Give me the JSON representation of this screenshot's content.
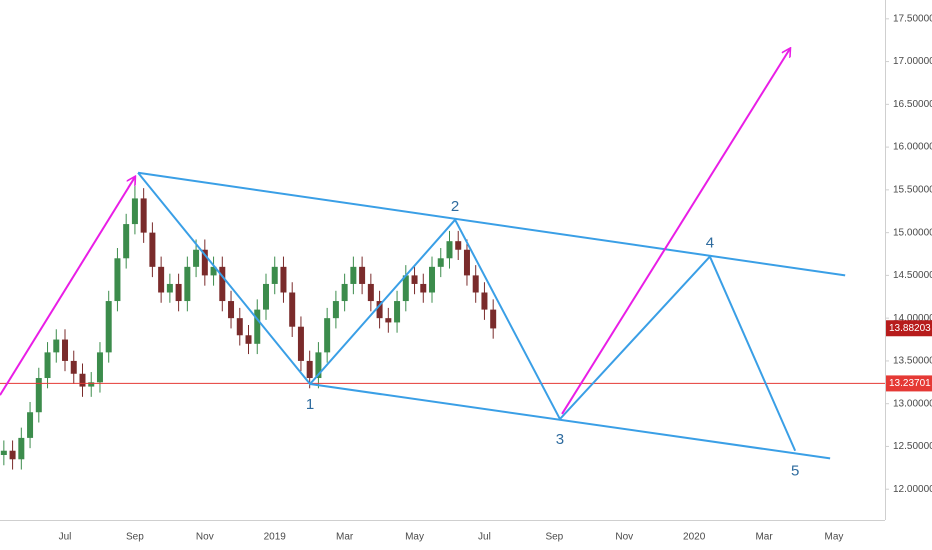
{
  "chart_data": {
    "type": "candlestick",
    "xlim": [
      4.14,
      29.46
    ],
    "ylim": [
      11.64,
      17.72
    ],
    "xticks": [
      {
        "value": 6,
        "label": "Jul"
      },
      {
        "value": 8,
        "label": "Sep"
      },
      {
        "value": 10,
        "label": "Nov"
      },
      {
        "value": 12,
        "label": "2019"
      },
      {
        "value": 14,
        "label": "Mar"
      },
      {
        "value": 16,
        "label": "May"
      },
      {
        "value": 18,
        "label": "Jul"
      },
      {
        "value": 20,
        "label": "Sep"
      },
      {
        "value": 22,
        "label": "Nov"
      },
      {
        "value": 24,
        "label": "2020"
      },
      {
        "value": 26,
        "label": "Mar"
      },
      {
        "value": 28,
        "label": "May"
      }
    ],
    "yticks": [
      {
        "value": 12,
        "label": "12.00000"
      },
      {
        "value": 12.5,
        "label": "12.50000"
      },
      {
        "value": 13,
        "label": "13.00000"
      },
      {
        "value": 13.5,
        "label": "13.50000"
      },
      {
        "value": 14,
        "label": "14.00000"
      },
      {
        "value": 14.5,
        "label": "14.50000"
      },
      {
        "value": 15,
        "label": "15.00000"
      },
      {
        "value": 15.5,
        "label": "15.50000"
      },
      {
        "value": 16,
        "label": "16.00000"
      },
      {
        "value": 16.5,
        "label": "16.50000"
      },
      {
        "value": 17,
        "label": "17.00000"
      },
      {
        "value": 17.5,
        "label": "17.50000"
      }
    ],
    "up_color": "#3c8c4c",
    "down_color": "#7a2b2b",
    "candles": {
      "x": [
        4.25,
        4.5,
        4.75,
        5,
        5.25,
        5.5,
        5.75,
        6,
        6.25,
        6.5,
        6.75,
        7,
        7.25,
        7.5,
        7.75,
        8,
        8.25,
        8.5,
        8.75,
        9,
        9.25,
        9.5,
        9.75,
        10,
        10.25,
        10.5,
        10.75,
        11,
        11.25,
        11.5,
        11.75,
        12,
        12.25,
        12.5,
        12.75,
        13,
        13.25,
        13.5,
        13.75,
        14,
        14.25,
        14.5,
        14.75,
        15,
        15.25,
        15.5,
        15.75,
        16,
        16.25,
        16.5,
        16.75,
        17,
        17.25,
        17.5,
        17.75,
        18,
        18.25
      ],
      "open": [
        12.4,
        12.45,
        12.35,
        12.6,
        12.9,
        13.3,
        13.6,
        13.75,
        13.5,
        13.35,
        13.2,
        13.25,
        13.6,
        14.2,
        14.7,
        15.1,
        15.4,
        15.0,
        14.6,
        14.3,
        14.4,
        14.2,
        14.6,
        14.8,
        14.5,
        14.6,
        14.2,
        14.0,
        13.8,
        13.7,
        14.1,
        14.4,
        14.6,
        14.3,
        13.9,
        13.5,
        13.3,
        13.6,
        14.0,
        14.2,
        14.4,
        14.6,
        14.4,
        14.2,
        14.0,
        13.95,
        14.2,
        14.5,
        14.4,
        14.3,
        14.6,
        14.7,
        14.9,
        14.8,
        14.5,
        14.3,
        14.1
      ],
      "high": [
        12.57,
        12.57,
        12.72,
        13.02,
        13.42,
        13.72,
        13.87,
        13.87,
        13.62,
        13.47,
        13.37,
        13.72,
        14.32,
        14.82,
        15.22,
        15.62,
        15.52,
        15.12,
        14.72,
        14.52,
        14.52,
        14.72,
        14.92,
        14.92,
        14.72,
        14.72,
        14.32,
        14.12,
        13.92,
        14.22,
        14.52,
        14.72,
        14.72,
        14.42,
        14.02,
        13.62,
        13.72,
        14.12,
        14.32,
        14.52,
        14.72,
        14.72,
        14.52,
        14.32,
        14.12,
        14.32,
        14.62,
        14.62,
        14.52,
        14.72,
        14.82,
        15.02,
        15.02,
        14.92,
        14.62,
        14.42,
        14.22
      ],
      "low": [
        12.28,
        12.23,
        12.23,
        12.48,
        12.78,
        13.18,
        13.48,
        13.38,
        13.23,
        13.08,
        13.08,
        13.13,
        13.48,
        14.08,
        14.58,
        14.98,
        14.88,
        14.48,
        14.18,
        14.18,
        14.08,
        14.08,
        14.48,
        14.38,
        14.38,
        14.08,
        13.88,
        13.68,
        13.58,
        13.58,
        13.98,
        14.28,
        14.18,
        13.78,
        13.38,
        13.18,
        13.18,
        13.48,
        13.88,
        14.08,
        14.28,
        14.28,
        14.08,
        13.88,
        13.83,
        13.83,
        14.08,
        14.28,
        14.18,
        14.18,
        14.48,
        14.58,
        14.68,
        14.38,
        14.18,
        13.98,
        13.76
      ],
      "close": [
        12.45,
        12.35,
        12.6,
        12.9,
        13.3,
        13.6,
        13.75,
        13.5,
        13.35,
        13.2,
        13.25,
        13.6,
        14.2,
        14.7,
        15.1,
        15.4,
        15.0,
        14.6,
        14.3,
        14.4,
        14.2,
        14.6,
        14.8,
        14.5,
        14.6,
        14.2,
        14.0,
        13.8,
        13.7,
        14.1,
        14.4,
        14.6,
        14.3,
        13.9,
        13.5,
        13.3,
        13.6,
        14.0,
        14.2,
        14.4,
        14.6,
        14.4,
        14.2,
        14.0,
        13.95,
        14.2,
        14.5,
        14.4,
        14.3,
        14.6,
        14.7,
        14.9,
        14.8,
        14.5,
        14.3,
        14.1,
        13.88
      ]
    },
    "drawings": [
      {
        "color": "#3a9fe6",
        "arrow": false,
        "x": [
          8.09,
          28.32
        ],
        "y": [
          15.7,
          14.5
        ]
      },
      {
        "color": "#3a9fe6",
        "arrow": false,
        "x": [
          13.01,
          27.89
        ],
        "y": [
          13.23,
          12.36
        ]
      },
      {
        "color": "#3a9fe6",
        "arrow": false,
        "x": [
          8.09,
          13.01,
          17.16,
          20.16,
          24.45,
          26.89
        ],
        "y": [
          15.7,
          13.23,
          15.15,
          12.82,
          14.72,
          12.45
        ]
      },
      {
        "color": "#e91ee6",
        "arrow": true,
        "x": [
          4.14,
          8.0
        ],
        "y": [
          13.1,
          15.65
        ]
      },
      {
        "color": "#e91ee6",
        "arrow": true,
        "x": [
          20.22,
          26.74
        ],
        "y": [
          12.88,
          17.15
        ]
      }
    ],
    "wave_labels": [
      "1",
      "2",
      "3",
      "4",
      "5"
    ],
    "hline": {
      "value": 13.23701,
      "color": "#e53935"
    },
    "last_price": {
      "value": 13.88203,
      "color": "#b71c1c"
    }
  }
}
